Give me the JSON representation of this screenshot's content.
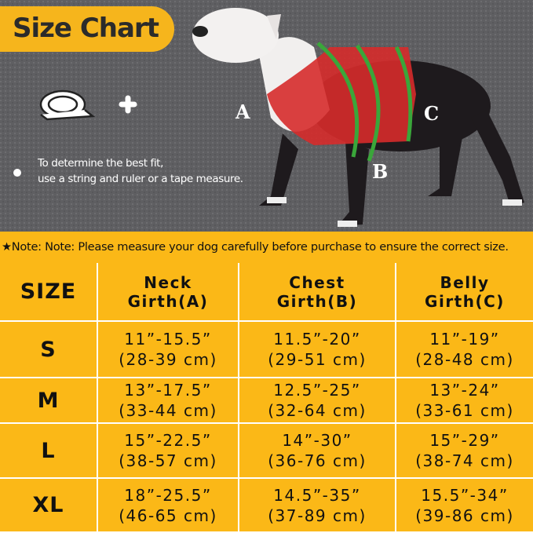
{
  "header": {
    "title": "Size Chart",
    "tip_lines": [
      "To determine the best fit,",
      "use a string and ruler or a tape measure."
    ],
    "labels": [
      "A",
      "B",
      "C"
    ]
  },
  "note": "★Note: Note: Please measure your dog carefully before purchase to ensure the correct size.",
  "table": {
    "columns": [
      [
        "SIZE"
      ],
      [
        "Neck",
        "Girth(A)"
      ],
      [
        "Chest",
        "Girth(B)"
      ],
      [
        "Belly",
        "Girth(C)"
      ]
    ],
    "rows": [
      [
        [
          "S"
        ],
        [
          "11”-15.5”",
          "(28-39 cm)"
        ],
        [
          "11.5”-20”",
          "(29-51 cm)"
        ],
        [
          "11”-19”",
          "(28-48 cm)"
        ]
      ],
      [
        [
          "M"
        ],
        [
          "13”-17.5”",
          "(33-44 cm)"
        ],
        [
          "12.5”-25”",
          "(32-64 cm)"
        ],
        [
          "13”-24”",
          "(33-61 cm)"
        ]
      ],
      [
        [
          "L"
        ],
        [
          "15”-22.5”",
          "(38-57 cm)"
        ],
        [
          "14”-30”",
          "(36-76 cm)"
        ],
        [
          "15”-29”",
          "(38-74 cm)"
        ]
      ],
      [
        [
          "XL"
        ],
        [
          "18”-25.5”",
          "(46-65 cm)"
        ],
        [
          "14.5”-35”",
          "(37-89 cm)"
        ],
        [
          "15.5”-34”",
          "(39-86 cm)"
        ]
      ]
    ]
  }
}
